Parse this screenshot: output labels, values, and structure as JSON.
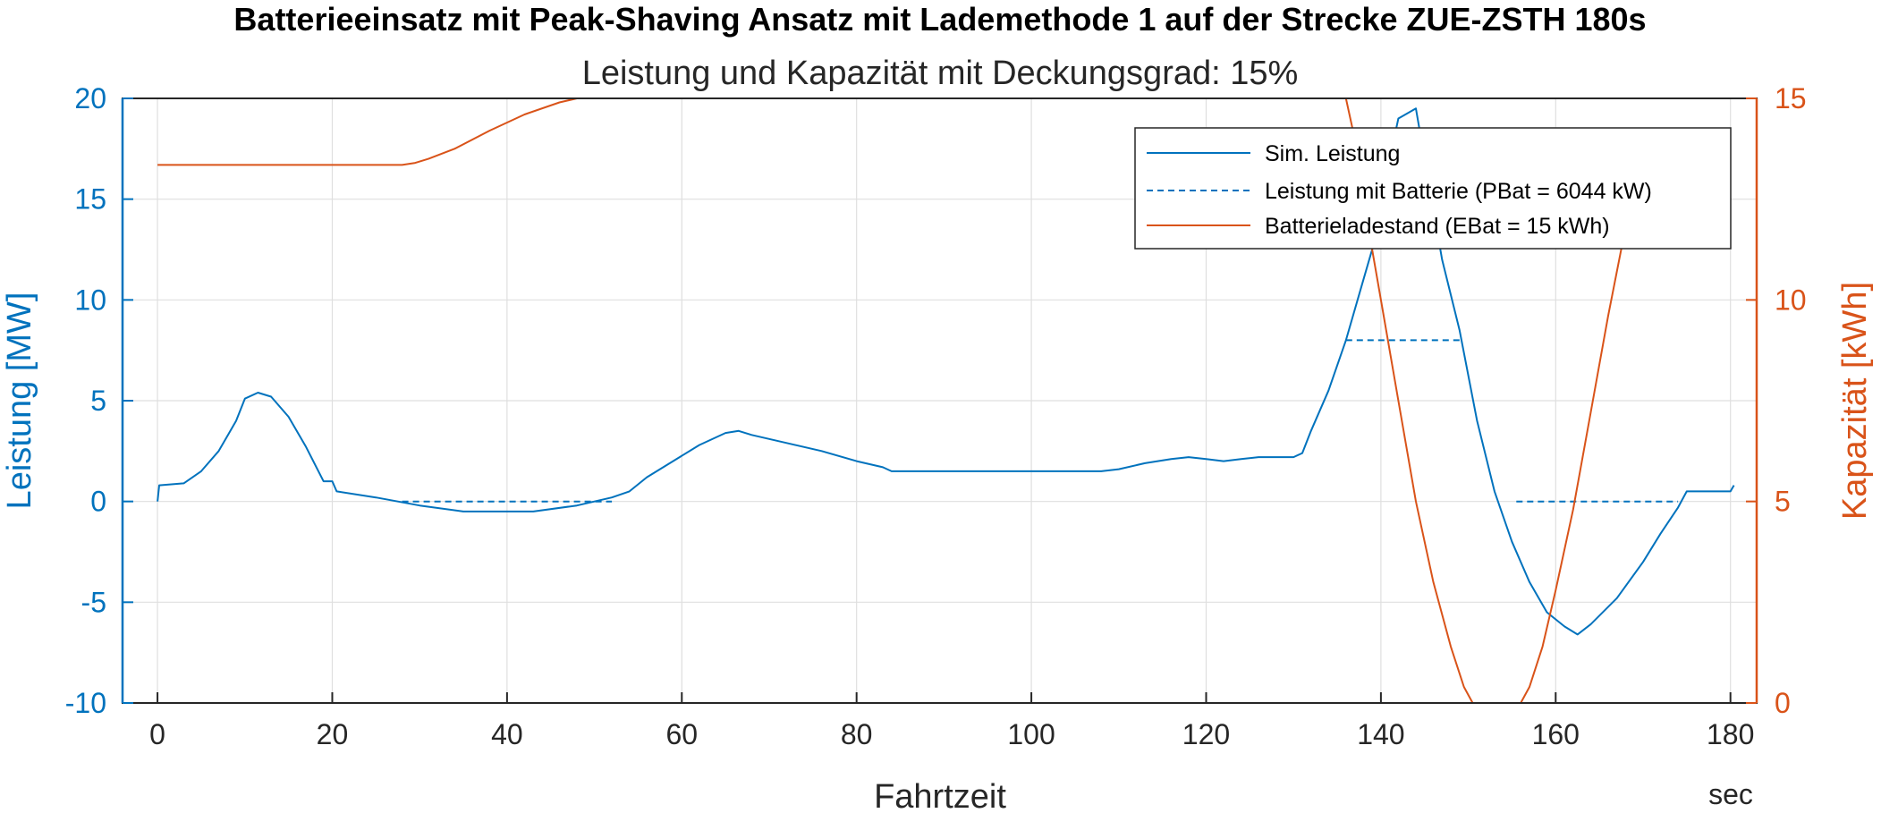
{
  "chart_data": {
    "type": "line",
    "title": "Batterieeinsatz mit Peak-Shaving Ansatz mit Lademethode 1 auf der Strecke ZUE-ZSTH 180s",
    "subtitle": "Leistung und Kapazität mit Deckungsgrad: 15%",
    "xlabel": "Fahrtzeit",
    "xunit": "sec",
    "ylabel_left": "Leistung [MW]",
    "ylabel_right": "Kapazität [kWh]",
    "xlim": [
      -4,
      183
    ],
    "ylim_left": [
      -10,
      20
    ],
    "ylim_right": [
      0,
      15
    ],
    "xticks": [
      0,
      20,
      40,
      60,
      80,
      100,
      120,
      140,
      160,
      180
    ],
    "yticks_left": [
      -10,
      -5,
      0,
      5,
      10,
      15,
      20
    ],
    "yticks_right": [
      0,
      5,
      10,
      15
    ],
    "grid": true,
    "legend_position": "top-right",
    "colors": {
      "blue": "#0072BD",
      "orange": "#D95319"
    },
    "series": [
      {
        "name": "Sim. Leistung",
        "axis": "left",
        "style": "solid",
        "color": "#0072BD",
        "points": [
          [
            0,
            0
          ],
          [
            0.2,
            0.8
          ],
          [
            3,
            0.9
          ],
          [
            5,
            1.5
          ],
          [
            7,
            2.5
          ],
          [
            9,
            4
          ],
          [
            10,
            5.1
          ],
          [
            11.5,
            5.4
          ],
          [
            13,
            5.2
          ],
          [
            15,
            4.2
          ],
          [
            17,
            2.7
          ],
          [
            19,
            1
          ],
          [
            20,
            1
          ],
          [
            20.5,
            0.5
          ],
          [
            25,
            0.2
          ],
          [
            30,
            -0.2
          ],
          [
            35,
            -0.5
          ],
          [
            43,
            -0.5
          ],
          [
            48,
            -0.2
          ],
          [
            52,
            0.2
          ],
          [
            54,
            0.5
          ],
          [
            56,
            1.2
          ],
          [
            59,
            2
          ],
          [
            62,
            2.8
          ],
          [
            65,
            3.4
          ],
          [
            66.5,
            3.5
          ],
          [
            68,
            3.3
          ],
          [
            72,
            2.9
          ],
          [
            76,
            2.5
          ],
          [
            80,
            2
          ],
          [
            83,
            1.7
          ],
          [
            84,
            1.5
          ],
          [
            90,
            1.5
          ],
          [
            100,
            1.5
          ],
          [
            108,
            1.5
          ],
          [
            110,
            1.6
          ],
          [
            113,
            1.9
          ],
          [
            116,
            2.1
          ],
          [
            118,
            2.2
          ],
          [
            120,
            2.1
          ],
          [
            122,
            2
          ],
          [
            124,
            2.1
          ],
          [
            126,
            2.2
          ],
          [
            130,
            2.2
          ],
          [
            131,
            2.4
          ],
          [
            132,
            3.5
          ],
          [
            134,
            5.5
          ],
          [
            136,
            8
          ],
          [
            138,
            11
          ],
          [
            140,
            14
          ],
          [
            141,
            17
          ],
          [
            142,
            19
          ],
          [
            144,
            19.5
          ],
          [
            145,
            17
          ],
          [
            147,
            12
          ],
          [
            149,
            8.5
          ],
          [
            151,
            4
          ],
          [
            153,
            0.5
          ],
          [
            155,
            -2
          ],
          [
            157,
            -4
          ],
          [
            159,
            -5.5
          ],
          [
            161,
            -6.2
          ],
          [
            162.5,
            -6.6
          ],
          [
            164,
            -6.1
          ],
          [
            167,
            -4.8
          ],
          [
            170,
            -3
          ],
          [
            172,
            -1.6
          ],
          [
            174,
            -0.3
          ],
          [
            175,
            0.5
          ],
          [
            180,
            0.5
          ],
          [
            180.4,
            0.8
          ]
        ]
      },
      {
        "name": "Leistung mit Batterie (PBat = 6044 kW)",
        "axis": "left",
        "style": "dashed",
        "color": "#0072BD",
        "segments": [
          [
            [
              28,
              0
            ],
            [
              52,
              0
            ]
          ],
          [
            [
              136,
              8
            ],
            [
              149,
              8
            ]
          ],
          [
            [
              155.5,
              0
            ],
            [
              174,
              0
            ]
          ]
        ]
      },
      {
        "name": "Batterieladestand (EBat = 15 kWh)",
        "axis": "right",
        "style": "solid",
        "color": "#D95319",
        "points": [
          [
            0,
            13.35
          ],
          [
            28,
            13.35
          ],
          [
            29.5,
            13.4
          ],
          [
            31,
            13.5
          ],
          [
            34,
            13.75
          ],
          [
            38,
            14.2
          ],
          [
            42,
            14.6
          ],
          [
            46,
            14.9
          ],
          [
            48,
            15
          ],
          [
            136,
            15
          ],
          [
            137,
            14
          ],
          [
            138,
            12.5
          ],
          [
            140,
            10
          ],
          [
            142,
            7.5
          ],
          [
            144,
            5
          ],
          [
            146,
            3
          ],
          [
            148,
            1.4
          ],
          [
            149.5,
            0.4
          ],
          [
            150.5,
            0
          ],
          [
            156,
            0
          ],
          [
            157,
            0.4
          ],
          [
            158.5,
            1.4
          ],
          [
            160,
            2.8
          ],
          [
            162,
            4.8
          ],
          [
            164,
            7.2
          ],
          [
            166,
            9.6
          ],
          [
            168,
            11.8
          ]
        ]
      }
    ]
  }
}
